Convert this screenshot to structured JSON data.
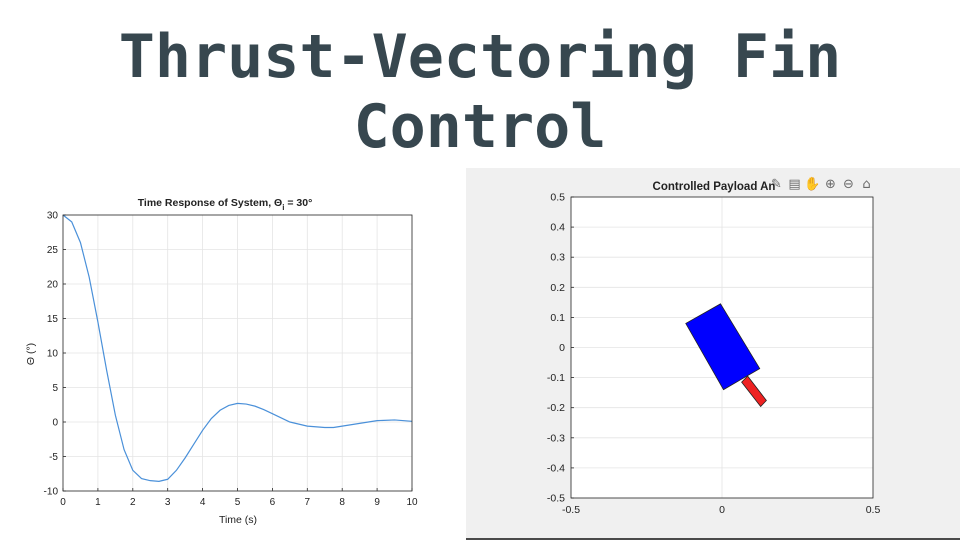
{
  "slide": {
    "title_line1": "Thrust-Vectoring Fin",
    "title_line2": "Control"
  },
  "chart_data": [
    {
      "type": "line",
      "title": "Time Response of System, Θ",
      "title_sub": "i",
      "title_suffix": " = 30°",
      "xlabel": "Time (s)",
      "ylabel": "Θ (°)",
      "xlim": [
        0,
        10
      ],
      "ylim": [
        -10,
        30
      ],
      "xticks": [
        "0",
        "1",
        "2",
        "3",
        "4",
        "5",
        "6",
        "7",
        "8",
        "9",
        "10"
      ],
      "yticks": [
        "-10",
        "-5",
        "0",
        "5",
        "10",
        "15",
        "20",
        "25",
        "30"
      ],
      "grid": true,
      "series": [
        {
          "color": "#4a90d9",
          "x": [
            0,
            0.25,
            0.5,
            0.75,
            1.0,
            1.25,
            1.5,
            1.75,
            2.0,
            2.25,
            2.5,
            2.75,
            3.0,
            3.25,
            3.5,
            3.75,
            4.0,
            4.25,
            4.5,
            4.75,
            5.0,
            5.25,
            5.5,
            5.75,
            6.0,
            6.5,
            7.0,
            7.5,
            7.75,
            8.0,
            8.5,
            9.0,
            9.5,
            10.0
          ],
          "y": [
            30,
            29,
            26,
            21,
            14.5,
            7.5,
            1.0,
            -4.0,
            -7.0,
            -8.2,
            -8.5,
            -8.6,
            -8.3,
            -7.0,
            -5.2,
            -3.2,
            -1.2,
            0.5,
            1.7,
            2.4,
            2.7,
            2.6,
            2.3,
            1.8,
            1.2,
            0.0,
            -0.6,
            -0.8,
            -0.8,
            -0.6,
            -0.2,
            0.2,
            0.3,
            0.1
          ]
        }
      ]
    },
    {
      "type": "scatter",
      "title": "Controlled Payload An",
      "xlim": [
        -0.5,
        0.5
      ],
      "ylim": [
        -0.5,
        0.5
      ],
      "xticks": [
        "-0.5",
        "0",
        "0.5"
      ],
      "yticks": [
        "0.5",
        "0.4",
        "0.3",
        "0.2",
        "0.1",
        "0",
        "-0.1",
        "-0.2",
        "-0.3",
        "-0.4",
        "-0.5"
      ],
      "grid": true,
      "shapes": [
        {
          "name": "payload body",
          "color": "#0000ff",
          "points": [
            [
              -0.12,
              0.08
            ],
            [
              -0.005,
              0.145
            ],
            [
              0.125,
              -0.07
            ],
            [
              0.005,
              -0.14
            ]
          ]
        },
        {
          "name": "fin",
          "color": "#ee2222",
          "points": [
            [
              0.065,
              -0.115
            ],
            [
              0.085,
              -0.095
            ],
            [
              0.147,
              -0.176
            ],
            [
              0.128,
              -0.196
            ]
          ]
        }
      ],
      "toolbar": [
        "brush-icon",
        "datatip-icon",
        "pan-icon",
        "zoom-in-icon",
        "zoom-out-icon",
        "home-icon"
      ]
    }
  ]
}
